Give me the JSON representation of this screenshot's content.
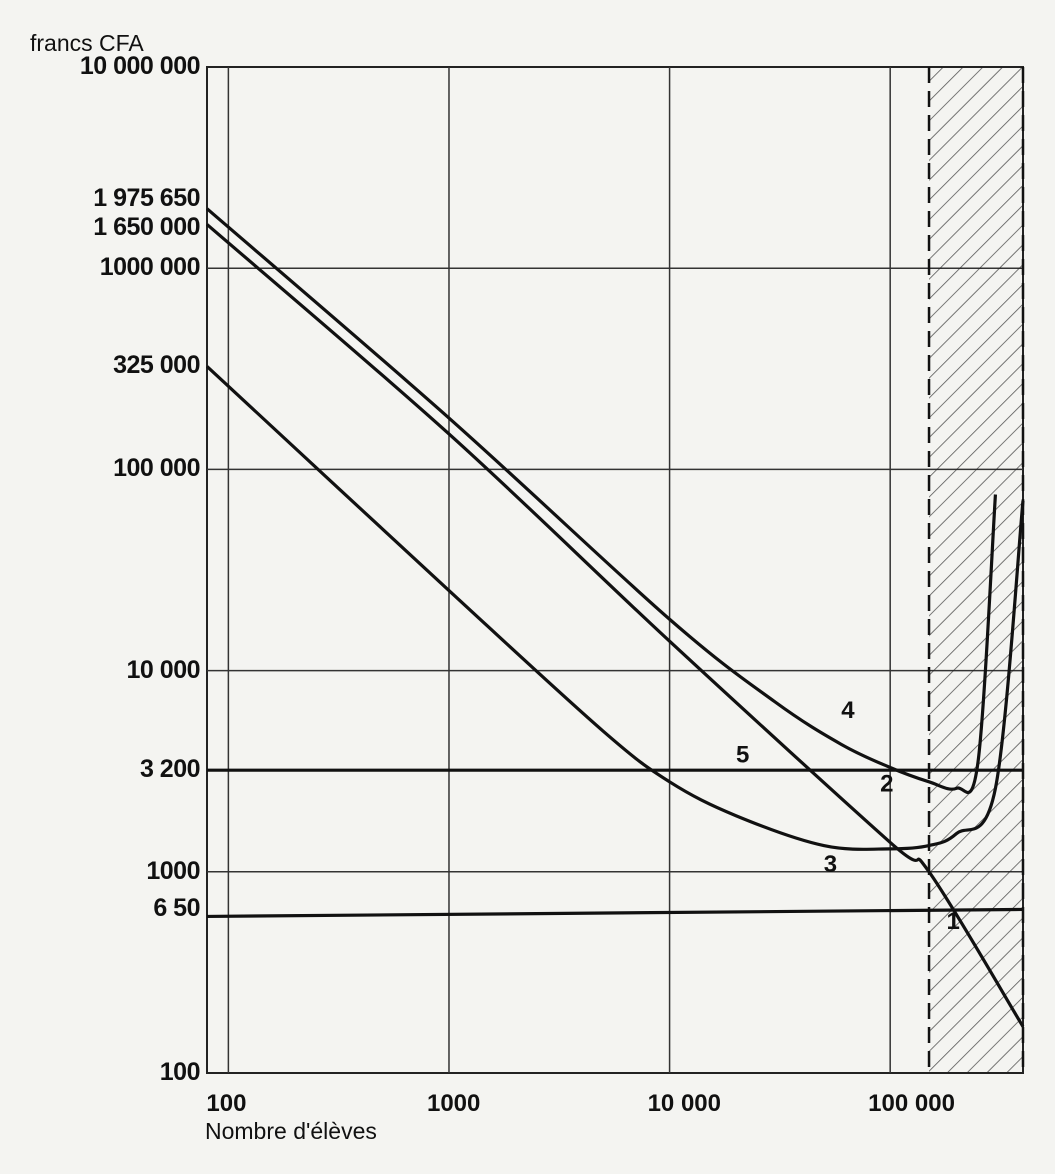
{
  "chart_data": {
    "type": "line",
    "ylabel": "francs  CFA",
    "xlabel": "Nombre   d'élèves",
    "x_scale": "log",
    "y_scale": "log",
    "xlim": [
      80,
      400000
    ],
    "ylim": [
      100,
      10000000
    ],
    "x_ticks": [
      {
        "value": 100,
        "label": "100"
      },
      {
        "value": 1000,
        "label": "1000"
      },
      {
        "value": 10000,
        "label": "10 000"
      },
      {
        "value": 100000,
        "label": "100 000"
      }
    ],
    "y_ticks": [
      {
        "value": 10000000,
        "label": "10 000 000"
      },
      {
        "value": 1975650,
        "label": "1 975 650"
      },
      {
        "value": 1650000,
        "label": "1 650 000"
      },
      {
        "value": 1000000,
        "label": "1000 000"
      },
      {
        "value": 325000,
        "label": "325 000"
      },
      {
        "value": 100000,
        "label": "100 000"
      },
      {
        "value": 10000,
        "label": "10 000"
      },
      {
        "value": 3200,
        "label": "3 200"
      },
      {
        "value": 1000,
        "label": "1000"
      },
      {
        "value": 650,
        "label": "6 50"
      },
      {
        "value": 100,
        "label": "100"
      }
    ],
    "shaded_band": {
      "x": [
        150000,
        400000
      ]
    },
    "series": [
      {
        "name": "1",
        "label_at": {
          "x": 180000,
          "y": 520
        },
        "x": [
          80,
          400000
        ],
        "y": [
          600,
          650
        ]
      },
      {
        "name": "2",
        "label_at": {
          "x": 90000,
          "y": 2500
        },
        "x": [
          80,
          1000,
          10000,
          100000,
          150000,
          400000
        ],
        "y": [
          1650000,
          150000,
          14000,
          1400,
          1000,
          170
        ]
      },
      {
        "name": "3",
        "label_at": {
          "x": 50000,
          "y": 1000
        },
        "x": [
          80,
          1000,
          5000,
          10000,
          20000,
          50000,
          100000,
          150000,
          200000,
          300000,
          400000
        ],
        "y": [
          325000,
          25000,
          5000,
          2800,
          1900,
          1350,
          1300,
          1350,
          1550,
          2600,
          70000
        ],
        "label_y_hint": 1000
      },
      {
        "name": "4",
        "label_at": {
          "x": 60000,
          "y": 5800
        },
        "x": [
          80,
          1000,
          10000,
          30000,
          60000,
          100000,
          150000,
          200000,
          250000,
          300000
        ],
        "y": [
          1975650,
          180000,
          18000,
          7000,
          4300,
          3300,
          2800,
          2600,
          3500,
          75000
        ]
      },
      {
        "name": "5",
        "label_at": {
          "x": 20000,
          "y": 3500
        },
        "x": [
          80,
          400000
        ],
        "y": [
          3200,
          3200
        ]
      }
    ]
  }
}
